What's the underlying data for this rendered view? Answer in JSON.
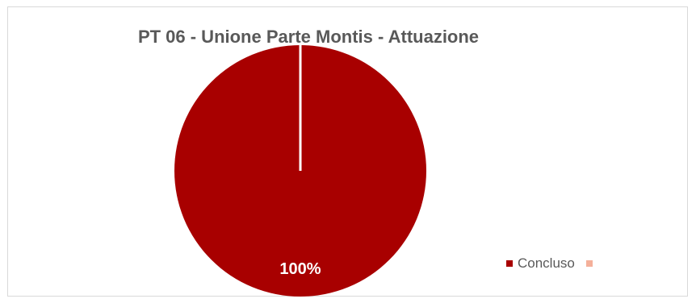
{
  "chart_data": {
    "type": "pie",
    "title": "PT 06 - Unione Parte Montis - Attuazione",
    "categories": [
      "Concluso",
      ""
    ],
    "values": [
      100,
      0
    ],
    "data_labels": [
      "100%",
      ""
    ],
    "colors": [
      "#a80000",
      "#f4b09a"
    ],
    "legend_position": "bottom-right"
  }
}
